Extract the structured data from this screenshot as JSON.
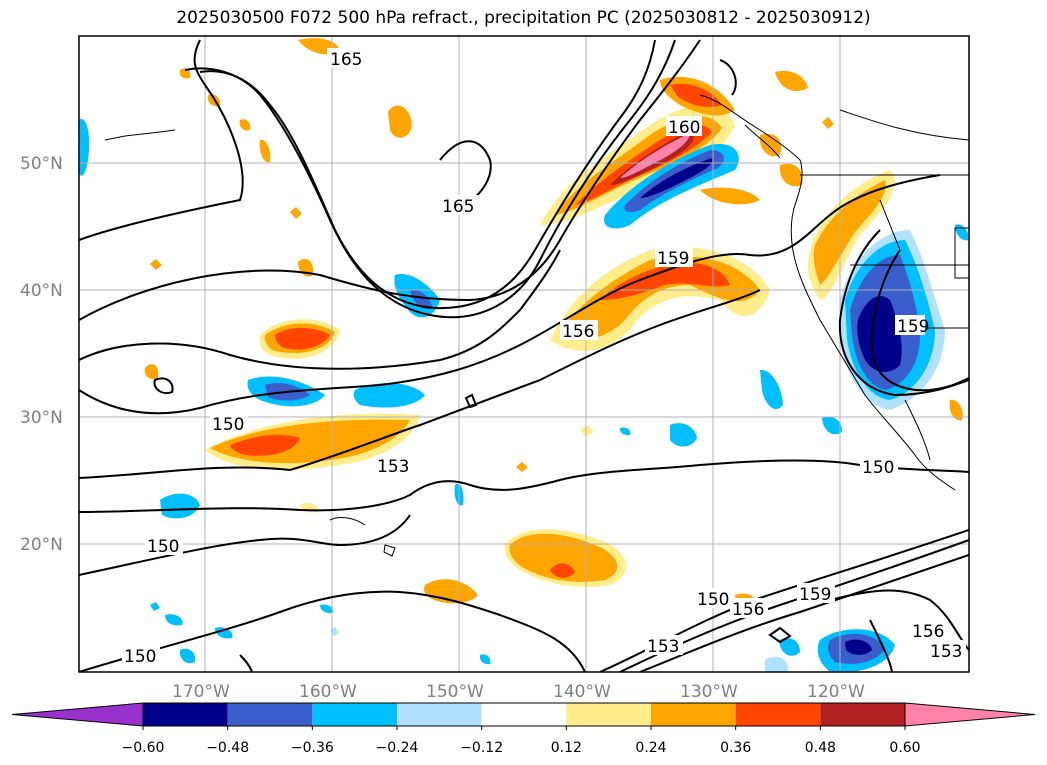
{
  "title": "2025030500 F072 500 hPa refract., precipitation PC (2025030812 - 2025030912)",
  "lon_ticks": [
    "170°W",
    "160°W",
    "150°W",
    "140°W",
    "130°W",
    "120°W"
  ],
  "lat_ticks": [
    "50°N",
    "40°N",
    "30°N",
    "20°N"
  ],
  "contour_labels": [
    "165",
    "165",
    "159",
    "156",
    "150",
    "153",
    "150",
    "150",
    "150",
    "153",
    "156",
    "159",
    "156",
    "153",
    "159",
    "150",
    "160"
  ],
  "colorbar": {
    "ticks": [
      "−0.60",
      "−0.48",
      "−0.36",
      "−0.24",
      "−0.12",
      "0.12",
      "0.24",
      "0.36",
      "0.48",
      "0.60"
    ],
    "colors": [
      "#9932cc",
      "#00008b",
      "#3a5fcd",
      "#00bfff",
      "#b0e2ff",
      "#ffffff",
      "#ffec8b",
      "#ffa500",
      "#ff4500",
      "#b22222",
      "#ff82ab"
    ]
  }
}
